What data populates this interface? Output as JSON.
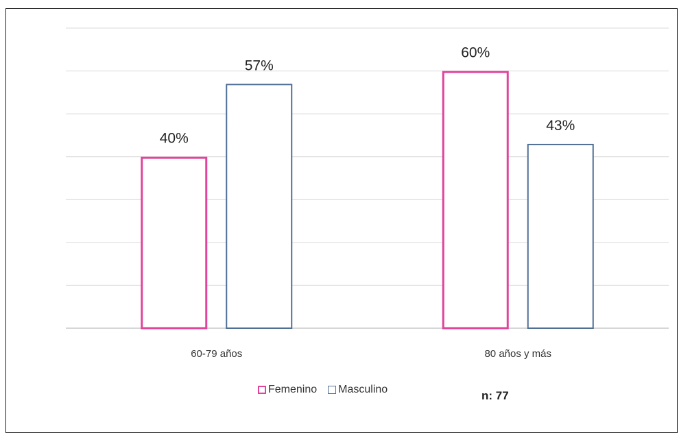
{
  "chart_data": {
    "type": "bar",
    "categories": [
      "60-79 años",
      "80 años y más"
    ],
    "series": [
      {
        "name": "Femenino",
        "values": [
          40,
          60
        ],
        "labels": [
          "40%",
          "60%"
        ],
        "color": "#e0459a"
      },
      {
        "name": "Masculino",
        "values": [
          57,
          43
        ],
        "labels": [
          "57%",
          "43%"
        ],
        "color": "#4f6f95"
      }
    ],
    "ylim": [
      0,
      70
    ],
    "grid": true,
    "bar_fill": "#ffffff",
    "legend": "bottom",
    "note": "n: 77"
  }
}
